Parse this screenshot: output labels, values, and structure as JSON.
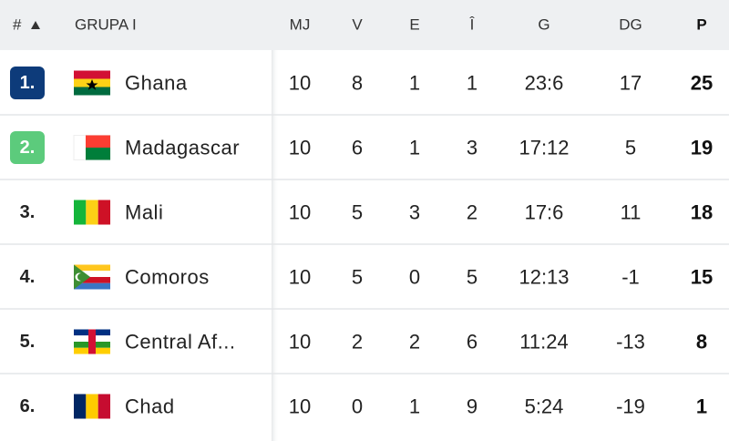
{
  "header": {
    "rank": "#",
    "group": "GRUPA I",
    "columns": [
      "MJ",
      "V",
      "E",
      "Î",
      "G",
      "DG",
      "P"
    ]
  },
  "table": {
    "rows": [
      {
        "rank": "1.",
        "team": "Ghana",
        "cells": [
          10,
          8,
          1,
          1,
          "23:6",
          17,
          25
        ]
      },
      {
        "rank": "2.",
        "team": "Madagascar",
        "cells": [
          10,
          6,
          1,
          3,
          "17:12",
          5,
          19
        ]
      },
      {
        "rank": "3.",
        "team": "Mali",
        "cells": [
          10,
          5,
          3,
          2,
          "17:6",
          11,
          18
        ]
      },
      {
        "rank": "4.",
        "team": "Comoros",
        "cells": [
          10,
          5,
          0,
          5,
          "12:13",
          -1,
          15
        ]
      },
      {
        "rank": "5.",
        "team": "Central Af...",
        "cells": [
          10,
          2,
          2,
          6,
          "11:24",
          -13,
          8
        ]
      },
      {
        "rank": "6.",
        "team": "Chad",
        "cells": [
          10,
          0,
          1,
          9,
          "5:24",
          -19,
          1
        ]
      }
    ]
  }
}
